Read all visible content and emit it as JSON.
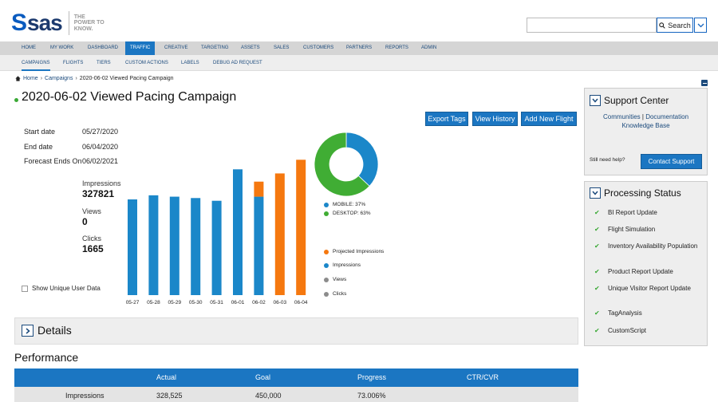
{
  "header": {
    "logo": {
      "s": "S",
      "sas": "sas",
      "tagline": "THE POWER TO KNOW."
    },
    "search": {
      "value": "",
      "button_label": "Search"
    }
  },
  "main_nav": {
    "items": [
      {
        "label": "Home"
      },
      {
        "label": "My Work"
      },
      {
        "label": "Dashboard"
      },
      {
        "label": "Traffic"
      },
      {
        "label": "Creative"
      },
      {
        "label": "Targeting"
      },
      {
        "label": "Assets"
      },
      {
        "label": "Sales"
      },
      {
        "label": "Customers"
      },
      {
        "label": "Partners"
      },
      {
        "label": "Reports"
      },
      {
        "label": "Admin"
      }
    ],
    "active": "Traffic"
  },
  "sub_nav": {
    "items": [
      {
        "label": "Campaigns"
      },
      {
        "label": "Flights"
      },
      {
        "label": "Tiers"
      },
      {
        "label": "Custom Actions"
      },
      {
        "label": "Labels"
      },
      {
        "label": "Debug Ad Request"
      }
    ],
    "active": "Campaigns"
  },
  "breadcrumb": {
    "home": "Home",
    "campaigns": "Campaigns",
    "current": "2020-06-02 Viewed Pacing Campaign"
  },
  "page": {
    "title": "2020-06-02 Viewed Pacing Campaign"
  },
  "actions": {
    "export_tags": "Export Tags",
    "view_history": "View History",
    "add_new_flight": "Add New Flight"
  },
  "campaign": {
    "start_label": "Start date",
    "start_value": "05/27/2020",
    "end_label": "End date",
    "end_value": "06/04/2020",
    "forecast_label": "Forecast Ends On",
    "forecast_value": "06/02/2021"
  },
  "stats": {
    "impressions_label": "Impressions",
    "impressions_value": "327821",
    "views_label": "Views",
    "views_value": "0",
    "clicks_label": "Clicks",
    "clicks_value": "1665"
  },
  "show_unique_label": "Show Unique User Data",
  "legend": {
    "projected": "Projected Impressions",
    "impressions": "Impressions",
    "views": "Views",
    "clicks": "Clicks",
    "colors": {
      "impressions": "#1b87c9",
      "projected": "#f5780f",
      "views": "#8c8c8c",
      "clicks": "#8c8c8c"
    }
  },
  "donut_legend": {
    "mobile": "MOBILE: 37%",
    "desktop": "DESKTOP: 63%"
  },
  "chart_data": {
    "type": "bar",
    "categories": [
      "05-27",
      "05-28",
      "05-29",
      "05-30",
      "05-31",
      "06-01",
      "06-02",
      "06-03",
      "06-04"
    ],
    "series": [
      {
        "name": "Impressions",
        "values": [
          70,
          73,
          72,
          71,
          69,
          92,
          72,
          0,
          0
        ]
      },
      {
        "name": "Projected Impressions",
        "values": [
          0,
          0,
          0,
          0,
          0,
          0,
          11,
          89,
          99
        ]
      }
    ],
    "ylim": [
      0,
      105
    ],
    "donut": {
      "type": "pie",
      "labels": [
        "MOBILE",
        "DESKTOP"
      ],
      "values": [
        37,
        63
      ],
      "colors": [
        "#1b87c9",
        "#40ad34"
      ]
    }
  },
  "details": {
    "label": "Details"
  },
  "performance": {
    "title": "Performance",
    "columns": [
      "",
      "Actual",
      "Goal",
      "Progress",
      "CTR/CVR"
    ],
    "rows": [
      {
        "metric": "Impressions",
        "actual": "328,525",
        "goal": "450,000",
        "progress": "73.006%",
        "ctr": ""
      }
    ]
  },
  "support_center": {
    "title": "Support Center",
    "communities": "Communities",
    "separator": "|",
    "documentation": "Documentation",
    "knowledge_base": "Knowledge Base",
    "need_help": "Still need help?",
    "contact_button": "Contact Support"
  },
  "processing_status": {
    "title": "Processing Status",
    "items": [
      {
        "label": "BI Report Update"
      },
      {
        "label": "Flight Simulation"
      },
      {
        "label": "Inventory Availability Population"
      },
      {
        "label": "Product Report Update"
      },
      {
        "label": "Unique Visitor Report Update"
      },
      {
        "label": "TagAnalysis"
      },
      {
        "label": "CustomScript"
      }
    ]
  }
}
